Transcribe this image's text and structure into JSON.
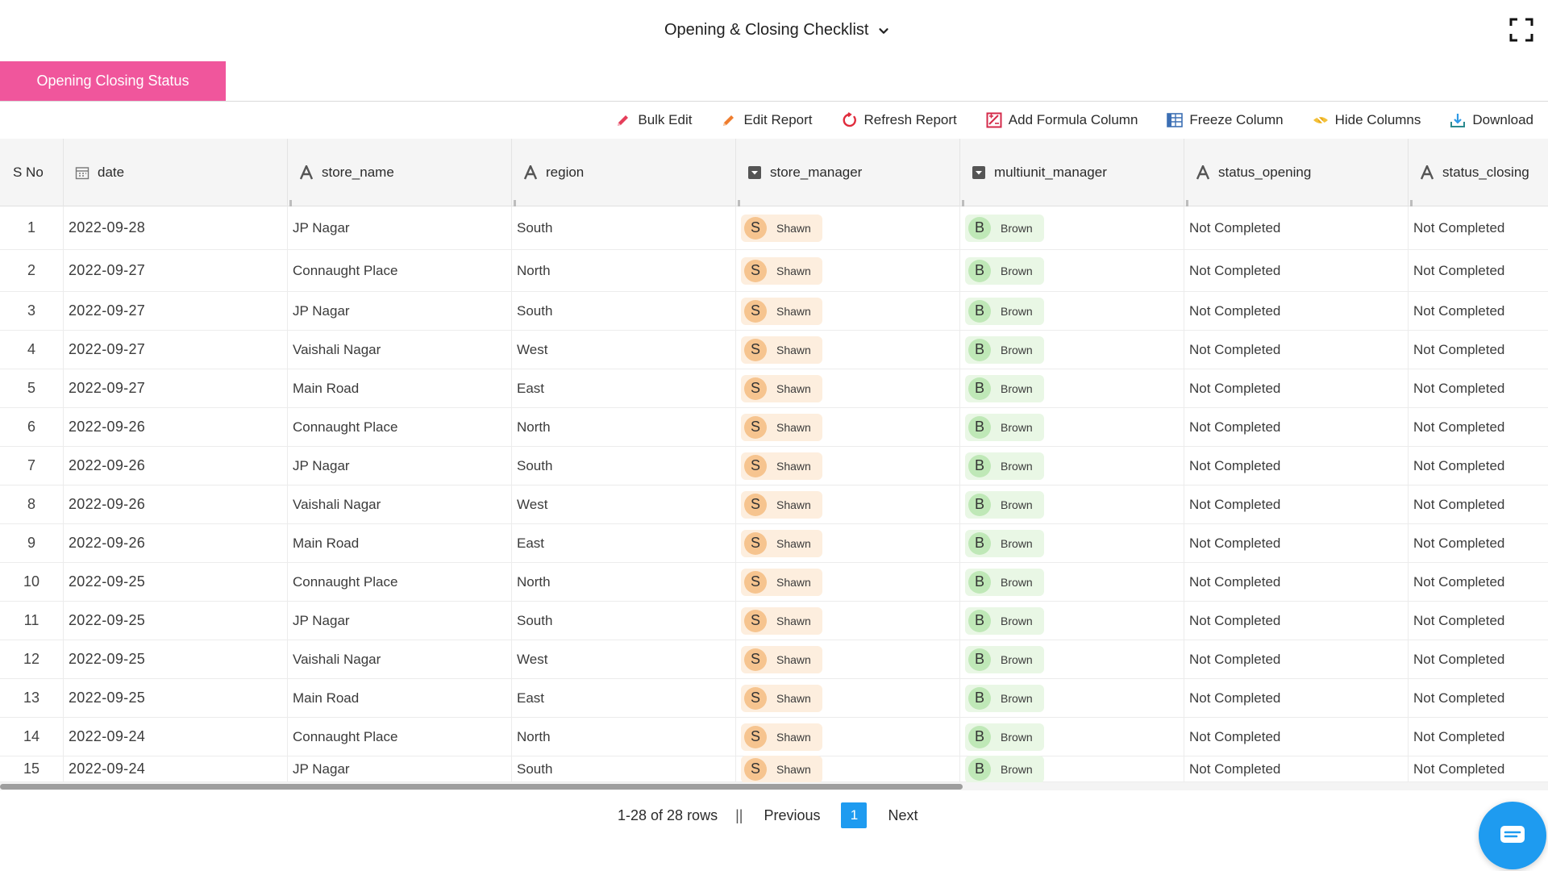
{
  "header": {
    "title": "Opening & Closing Checklist",
    "dropdown_icon": "chevron-down-icon",
    "fullscreen_icon": "fullscreen-icon"
  },
  "tabs": [
    {
      "label": "Opening Closing Status",
      "active": true,
      "color": "#f0569c"
    }
  ],
  "toolbar": {
    "bulk_edit": "Bulk Edit",
    "edit_report": "Edit Report",
    "refresh_report": "Refresh Report",
    "add_formula_column": "Add Formula Column",
    "freeze_column": "Freeze Column",
    "hide_columns": "Hide Columns",
    "download": "Download"
  },
  "columns": [
    {
      "label": "S No",
      "icon": ""
    },
    {
      "label": "date",
      "icon": "calendar-icon"
    },
    {
      "label": "store_name",
      "icon": "text-type-icon"
    },
    {
      "label": "region",
      "icon": "text-type-icon"
    },
    {
      "label": "store_manager",
      "icon": "dropdown-type-icon"
    },
    {
      "label": "multiunit_manager",
      "icon": "dropdown-type-icon"
    },
    {
      "label": "status_opening",
      "icon": "text-type-icon"
    },
    {
      "label": "status_closing",
      "icon": "text-type-icon"
    }
  ],
  "rows": [
    {
      "sno": "1",
      "date": "2022-09-28",
      "store_name": "JP Nagar",
      "region": "South",
      "store_manager": {
        "initial": "S",
        "name": "Shawn"
      },
      "multiunit_manager": {
        "initial": "B",
        "name": "Brown"
      },
      "status_opening": "Not Completed",
      "status_closing": "Not Completed"
    },
    {
      "sno": "2",
      "date": "2022-09-27",
      "store_name": "Connaught Place",
      "region": "North",
      "store_manager": {
        "initial": "S",
        "name": "Shawn"
      },
      "multiunit_manager": {
        "initial": "B",
        "name": "Brown"
      },
      "status_opening": "Not Completed",
      "status_closing": "Not Completed"
    },
    {
      "sno": "3",
      "date": "2022-09-27",
      "store_name": "JP Nagar",
      "region": "South",
      "store_manager": {
        "initial": "S",
        "name": "Shawn"
      },
      "multiunit_manager": {
        "initial": "B",
        "name": "Brown"
      },
      "status_opening": "Not Completed",
      "status_closing": "Not Completed"
    },
    {
      "sno": "4",
      "date": "2022-09-27",
      "store_name": "Vaishali Nagar",
      "region": "West",
      "store_manager": {
        "initial": "S",
        "name": "Shawn"
      },
      "multiunit_manager": {
        "initial": "B",
        "name": "Brown"
      },
      "status_opening": "Not Completed",
      "status_closing": "Not Completed"
    },
    {
      "sno": "5",
      "date": "2022-09-27",
      "store_name": "Main Road",
      "region": "East",
      "store_manager": {
        "initial": "S",
        "name": "Shawn"
      },
      "multiunit_manager": {
        "initial": "B",
        "name": "Brown"
      },
      "status_opening": "Not Completed",
      "status_closing": "Not Completed"
    },
    {
      "sno": "6",
      "date": "2022-09-26",
      "store_name": "Connaught Place",
      "region": "North",
      "store_manager": {
        "initial": "S",
        "name": "Shawn"
      },
      "multiunit_manager": {
        "initial": "B",
        "name": "Brown"
      },
      "status_opening": "Not Completed",
      "status_closing": "Not Completed"
    },
    {
      "sno": "7",
      "date": "2022-09-26",
      "store_name": "JP Nagar",
      "region": "South",
      "store_manager": {
        "initial": "S",
        "name": "Shawn"
      },
      "multiunit_manager": {
        "initial": "B",
        "name": "Brown"
      },
      "status_opening": "Not Completed",
      "status_closing": "Not Completed"
    },
    {
      "sno": "8",
      "date": "2022-09-26",
      "store_name": "Vaishali Nagar",
      "region": "West",
      "store_manager": {
        "initial": "S",
        "name": "Shawn"
      },
      "multiunit_manager": {
        "initial": "B",
        "name": "Brown"
      },
      "status_opening": "Not Completed",
      "status_closing": "Not Completed"
    },
    {
      "sno": "9",
      "date": "2022-09-26",
      "store_name": "Main Road",
      "region": "East",
      "store_manager": {
        "initial": "S",
        "name": "Shawn"
      },
      "multiunit_manager": {
        "initial": "B",
        "name": "Brown"
      },
      "status_opening": "Not Completed",
      "status_closing": "Not Completed"
    },
    {
      "sno": "10",
      "date": "2022-09-25",
      "store_name": "Connaught Place",
      "region": "North",
      "store_manager": {
        "initial": "S",
        "name": "Shawn"
      },
      "multiunit_manager": {
        "initial": "B",
        "name": "Brown"
      },
      "status_opening": "Not Completed",
      "status_closing": "Not Completed"
    },
    {
      "sno": "11",
      "date": "2022-09-25",
      "store_name": "JP Nagar",
      "region": "South",
      "store_manager": {
        "initial": "S",
        "name": "Shawn"
      },
      "multiunit_manager": {
        "initial": "B",
        "name": "Brown"
      },
      "status_opening": "Not Completed",
      "status_closing": "Not Completed"
    },
    {
      "sno": "12",
      "date": "2022-09-25",
      "store_name": "Vaishali Nagar",
      "region": "West",
      "store_manager": {
        "initial": "S",
        "name": "Shawn"
      },
      "multiunit_manager": {
        "initial": "B",
        "name": "Brown"
      },
      "status_opening": "Not Completed",
      "status_closing": "Not Completed"
    },
    {
      "sno": "13",
      "date": "2022-09-25",
      "store_name": "Main Road",
      "region": "East",
      "store_manager": {
        "initial": "S",
        "name": "Shawn"
      },
      "multiunit_manager": {
        "initial": "B",
        "name": "Brown"
      },
      "status_opening": "Not Completed",
      "status_closing": "Not Completed"
    },
    {
      "sno": "14",
      "date": "2022-09-24",
      "store_name": "Connaught Place",
      "region": "North",
      "store_manager": {
        "initial": "S",
        "name": "Shawn"
      },
      "multiunit_manager": {
        "initial": "B",
        "name": "Brown"
      },
      "status_opening": "Not Completed",
      "status_closing": "Not Completed"
    },
    {
      "sno": "15",
      "date": "2022-09-24",
      "store_name": "JP Nagar",
      "region": "South",
      "store_manager": {
        "initial": "S",
        "name": "Shawn"
      },
      "multiunit_manager": {
        "initial": "B",
        "name": "Brown"
      },
      "status_opening": "Not Completed",
      "status_closing": "Not Completed"
    }
  ],
  "pagination": {
    "range_text": "1-28 of 28 rows",
    "separator": "||",
    "previous": "Previous",
    "current_page": "1",
    "next": "Next"
  },
  "chat": {
    "icon": "chat-icon",
    "color": "#1e9bf0"
  }
}
